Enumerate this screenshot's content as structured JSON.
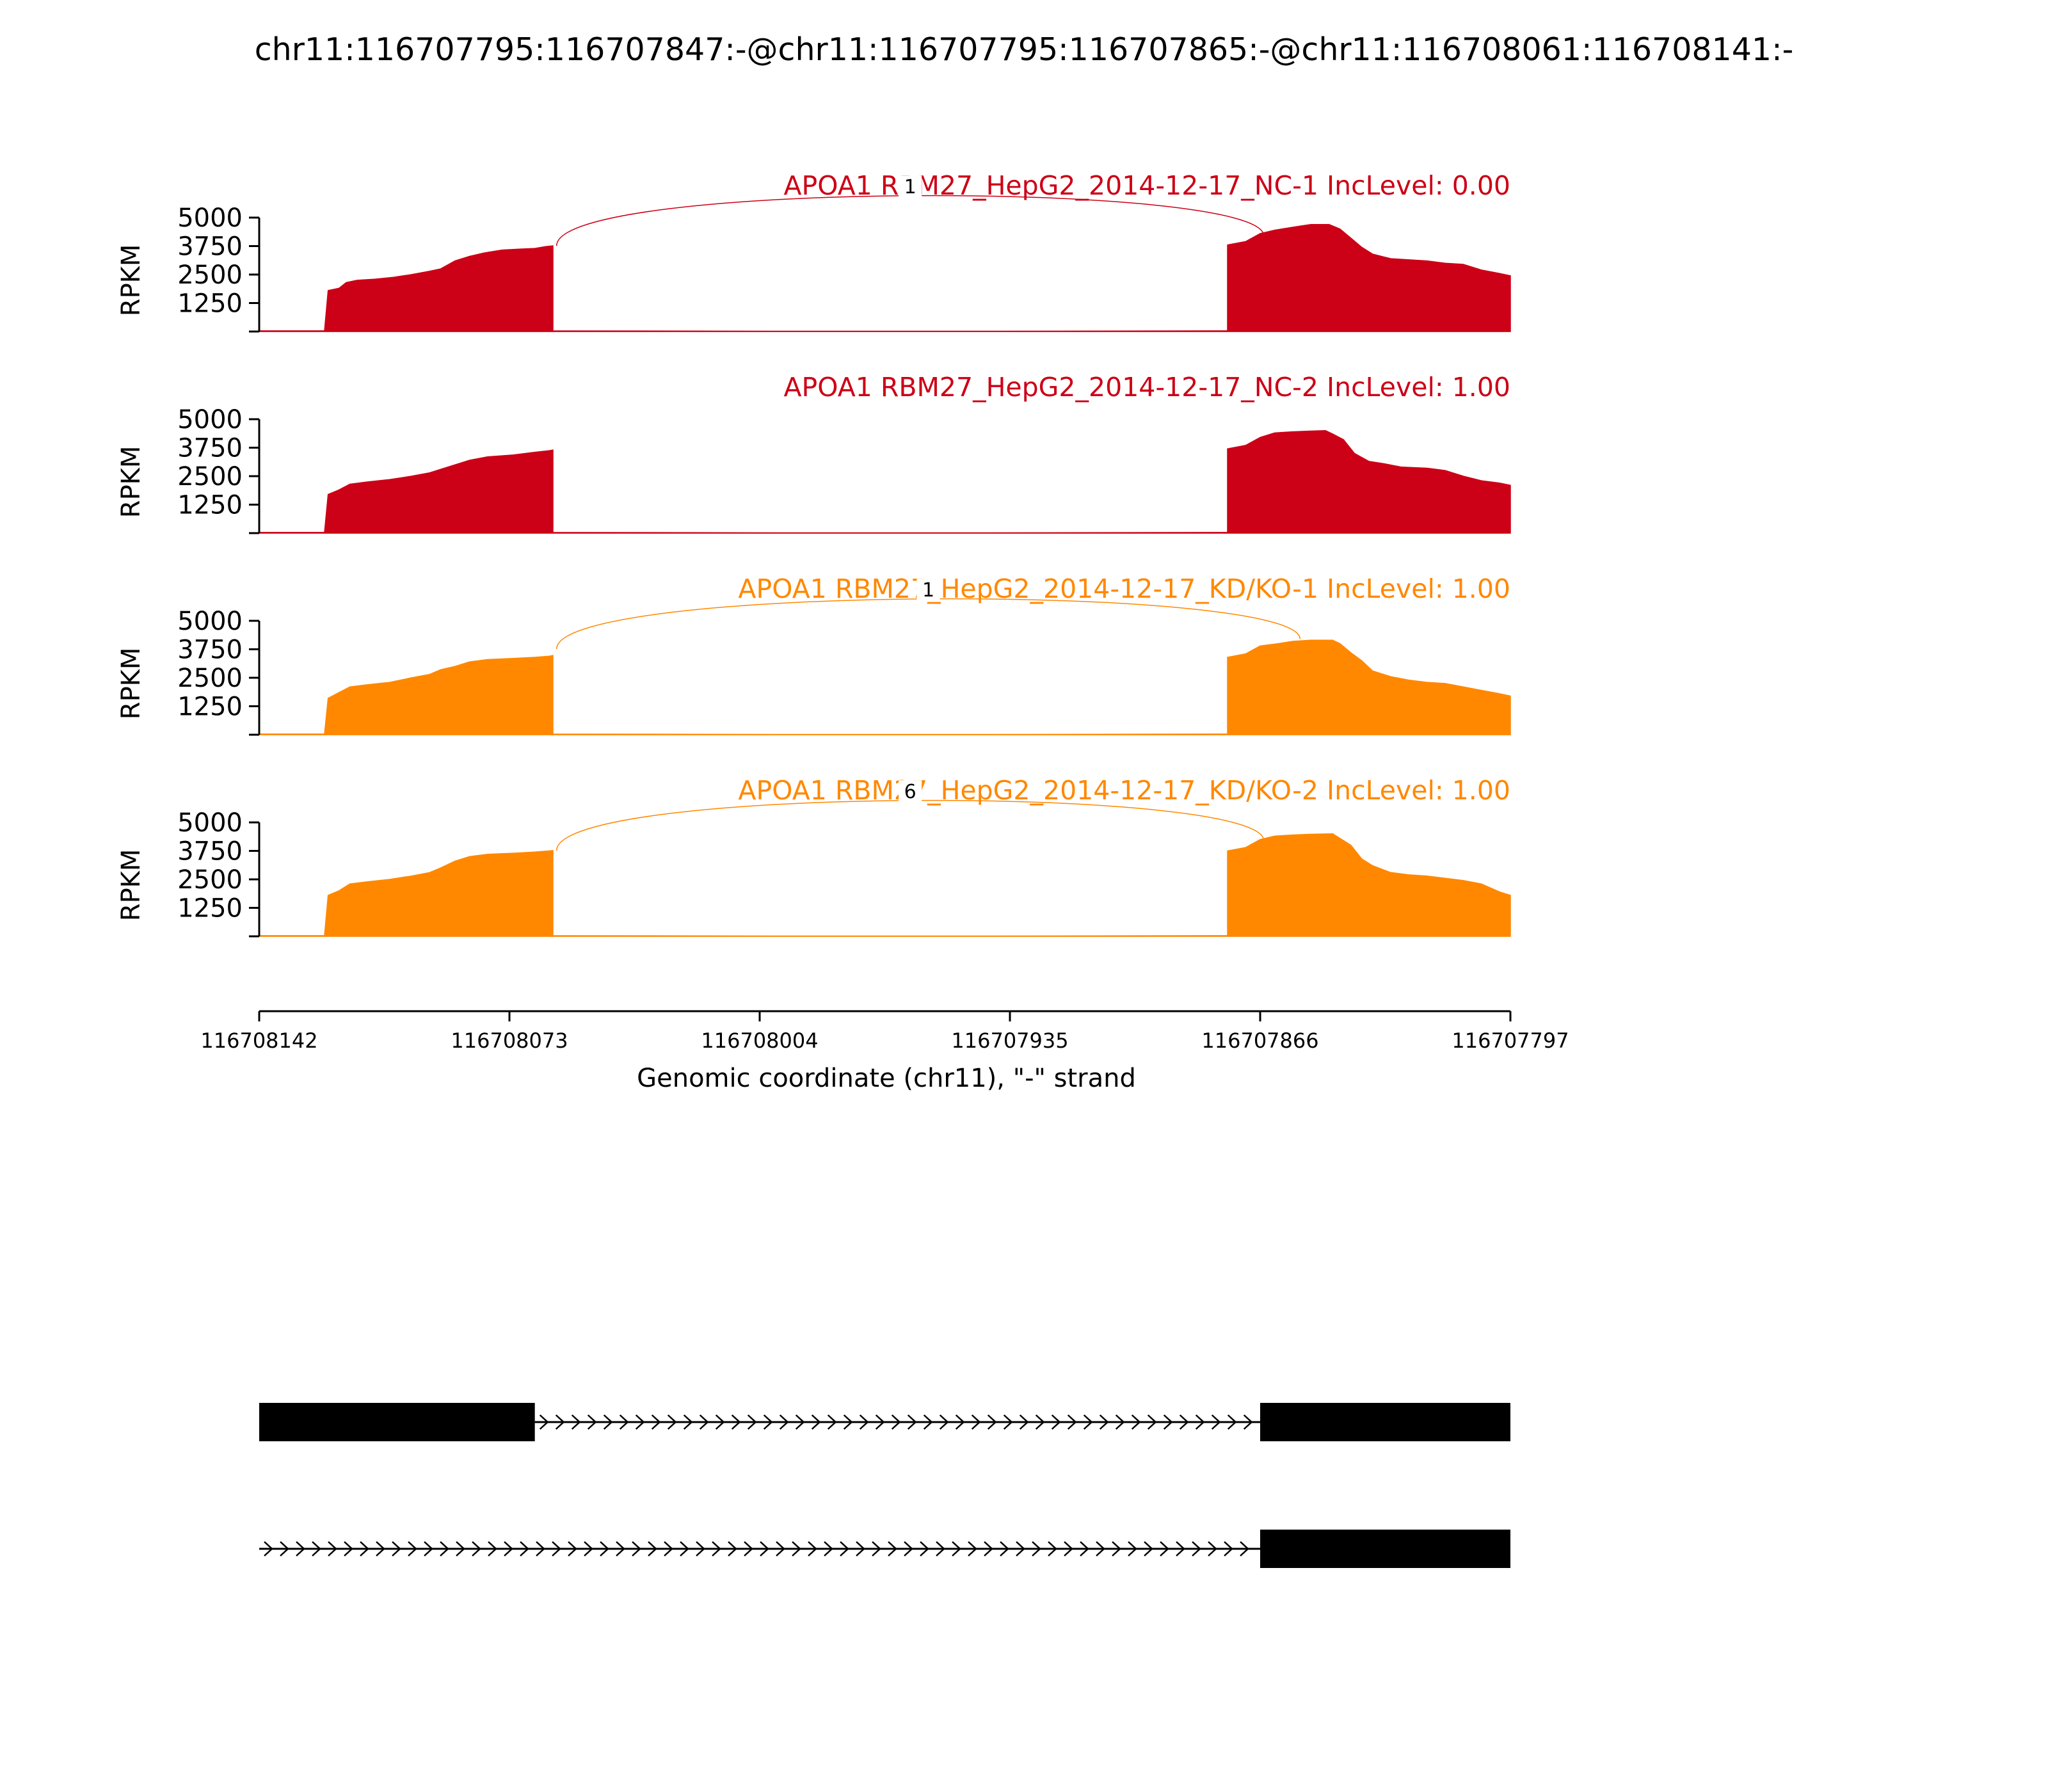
{
  "title": "chr11:116707795:116707847:-@chr11:116707795:116707865:-@chr11:116708061:116708141:-",
  "colors": {
    "nc": "#cc0016",
    "kd": "#ff8800",
    "axis": "#000000",
    "gene": "#000000"
  },
  "chart_data": {
    "type": "area",
    "title": "chr11:116707795:116707847:-@chr11:116707795:116707865:-@chr11:116708061:116708141:-",
    "xlabel": "Genomic coordinate (chr11), \"-\" strand",
    "ylabel": "RPKM",
    "xlim": [
      116708142,
      116707797
    ],
    "x_ticks": [
      "116708142",
      "116708073",
      "116708004",
      "116707935",
      "116707866",
      "116707797"
    ],
    "y_ticks": [
      "5000",
      "3750",
      "2500",
      "1250"
    ],
    "ylim": [
      0,
      5000
    ],
    "tracks": [
      {
        "label": "APOA1 RBM27_HepG2_2014-12-17_NC-1 IncLevel: 0.00",
        "color_key": "nc",
        "junction": {
          "from": 116708060,
          "to": 116707865,
          "count": "1",
          "peak": 5500
        },
        "coverage": [
          [
            116708142,
            30
          ],
          [
            116708124,
            30
          ],
          [
            116708123,
            1800
          ],
          [
            116708120,
            1900
          ],
          [
            116708118,
            2150
          ],
          [
            116708115,
            2250
          ],
          [
            116708110,
            2300
          ],
          [
            116708105,
            2380
          ],
          [
            116708100,
            2500
          ],
          [
            116708095,
            2650
          ],
          [
            116708092,
            2750
          ],
          [
            116708088,
            3100
          ],
          [
            116708084,
            3300
          ],
          [
            116708080,
            3450
          ],
          [
            116708075,
            3580
          ],
          [
            116708070,
            3620
          ],
          [
            116708066,
            3650
          ],
          [
            116708063,
            3730
          ],
          [
            116708061,
            3760
          ],
          [
            116708061,
            30
          ],
          [
            116708000,
            15
          ],
          [
            116707940,
            15
          ],
          [
            116707875,
            30
          ],
          [
            116707875,
            3800
          ],
          [
            116707870,
            3950
          ],
          [
            116707866,
            4300
          ],
          [
            116707862,
            4450
          ],
          [
            116707857,
            4580
          ],
          [
            116707852,
            4700
          ],
          [
            116707847,
            4700
          ],
          [
            116707844,
            4500
          ],
          [
            116707841,
            4100
          ],
          [
            116707838,
            3700
          ],
          [
            116707835,
            3400
          ],
          [
            116707830,
            3200
          ],
          [
            116707825,
            3150
          ],
          [
            116707820,
            3100
          ],
          [
            116707815,
            3000
          ],
          [
            116707810,
            2950
          ],
          [
            116707805,
            2700
          ],
          [
            116707800,
            2550
          ],
          [
            116707797,
            2450
          ]
        ]
      },
      {
        "label": "APOA1 RBM27_HepG2_2014-12-17_NC-2 IncLevel: 1.00",
        "color_key": "nc",
        "junction": null,
        "coverage": [
          [
            116708142,
            30
          ],
          [
            116708124,
            30
          ],
          [
            116708123,
            1700
          ],
          [
            116708120,
            1900
          ],
          [
            116708117,
            2150
          ],
          [
            116708112,
            2250
          ],
          [
            116708106,
            2350
          ],
          [
            116708100,
            2500
          ],
          [
            116708095,
            2650
          ],
          [
            116708092,
            2800
          ],
          [
            116708088,
            3000
          ],
          [
            116708084,
            3200
          ],
          [
            116708079,
            3350
          ],
          [
            116708072,
            3430
          ],
          [
            116708066,
            3550
          ],
          [
            116708062,
            3620
          ],
          [
            116708061,
            3650
          ],
          [
            116708061,
            30
          ],
          [
            116708000,
            15
          ],
          [
            116707940,
            15
          ],
          [
            116707875,
            30
          ],
          [
            116707875,
            3700
          ],
          [
            116707870,
            3850
          ],
          [
            116707866,
            4200
          ],
          [
            116707862,
            4400
          ],
          [
            116707857,
            4450
          ],
          [
            116707852,
            4480
          ],
          [
            116707848,
            4500
          ],
          [
            116707846,
            4350
          ],
          [
            116707843,
            4100
          ],
          [
            116707840,
            3500
          ],
          [
            116707836,
            3150
          ],
          [
            116707832,
            3050
          ],
          [
            116707827,
            2900
          ],
          [
            116707820,
            2850
          ],
          [
            116707815,
            2750
          ],
          [
            116707810,
            2500
          ],
          [
            116707805,
            2300
          ],
          [
            116707800,
            2200
          ],
          [
            116707797,
            2100
          ]
        ]
      },
      {
        "label": "APOA1 RBM27_HepG2_2014-12-17_KD/KO-1 IncLevel: 1.00",
        "color_key": "kd",
        "junction": {
          "from": 116708060,
          "to": 116707855,
          "count": "1",
          "peak": 5500
        },
        "coverage": [
          [
            116708142,
            30
          ],
          [
            116708124,
            30
          ],
          [
            116708123,
            1600
          ],
          [
            116708120,
            1850
          ],
          [
            116708117,
            2100
          ],
          [
            116708112,
            2200
          ],
          [
            116708106,
            2300
          ],
          [
            116708100,
            2500
          ],
          [
            116708095,
            2650
          ],
          [
            116708092,
            2850
          ],
          [
            116708088,
            3000
          ],
          [
            116708084,
            3200
          ],
          [
            116708079,
            3300
          ],
          [
            116708072,
            3350
          ],
          [
            116708066,
            3400
          ],
          [
            116708062,
            3450
          ],
          [
            116708061,
            3480
          ],
          [
            116708061,
            30
          ],
          [
            116708000,
            15
          ],
          [
            116707940,
            15
          ],
          [
            116707875,
            30
          ],
          [
            116707875,
            3400
          ],
          [
            116707870,
            3550
          ],
          [
            116707866,
            3900
          ],
          [
            116707861,
            4000
          ],
          [
            116707857,
            4100
          ],
          [
            116707852,
            4150
          ],
          [
            116707846,
            4150
          ],
          [
            116707844,
            4000
          ],
          [
            116707841,
            3600
          ],
          [
            116707838,
            3250
          ],
          [
            116707835,
            2800
          ],
          [
            116707830,
            2550
          ],
          [
            116707825,
            2400
          ],
          [
            116707820,
            2300
          ],
          [
            116707815,
            2250
          ],
          [
            116707810,
            2100
          ],
          [
            116707805,
            1950
          ],
          [
            116707800,
            1800
          ],
          [
            116707797,
            1700
          ]
        ]
      },
      {
        "label": "APOA1 RBM27_HepG2_2014-12-17_KD/KO-2 IncLevel: 1.00",
        "color_key": "kd",
        "junction": {
          "from": 116708060,
          "to": 116707865,
          "count": "6",
          "peak": 5500
        },
        "coverage": [
          [
            116708142,
            30
          ],
          [
            116708124,
            30
          ],
          [
            116708123,
            1800
          ],
          [
            116708120,
            2000
          ],
          [
            116708117,
            2300
          ],
          [
            116708112,
            2400
          ],
          [
            116708106,
            2500
          ],
          [
            116708100,
            2650
          ],
          [
            116708095,
            2800
          ],
          [
            116708092,
            3000
          ],
          [
            116708088,
            3300
          ],
          [
            116708084,
            3500
          ],
          [
            116708079,
            3600
          ],
          [
            116708072,
            3650
          ],
          [
            116708066,
            3700
          ],
          [
            116708062,
            3750
          ],
          [
            116708061,
            3770
          ],
          [
            116708061,
            30
          ],
          [
            116708000,
            15
          ],
          [
            116707940,
            15
          ],
          [
            116707875,
            30
          ],
          [
            116707875,
            3750
          ],
          [
            116707870,
            3900
          ],
          [
            116707866,
            4250
          ],
          [
            116707862,
            4400
          ],
          [
            116707857,
            4450
          ],
          [
            116707852,
            4480
          ],
          [
            116707846,
            4500
          ],
          [
            116707844,
            4300
          ],
          [
            116707841,
            4000
          ],
          [
            116707838,
            3400
          ],
          [
            116707835,
            3100
          ],
          [
            116707830,
            2800
          ],
          [
            116707825,
            2700
          ],
          [
            116707820,
            2650
          ],
          [
            116707815,
            2550
          ],
          [
            116707810,
            2450
          ],
          [
            116707805,
            2300
          ],
          [
            116707800,
            1950
          ],
          [
            116707797,
            1800
          ]
        ]
      }
    ],
    "transcripts": [
      {
        "exons": [
          [
            116708142,
            116708066
          ],
          [
            116707866,
            116707797
          ]
        ],
        "line": [
          116708066,
          116707866
        ]
      },
      {
        "exons": [
          [
            116707866,
            116707797
          ]
        ],
        "line": [
          116708142,
          116707866
        ]
      }
    ]
  }
}
